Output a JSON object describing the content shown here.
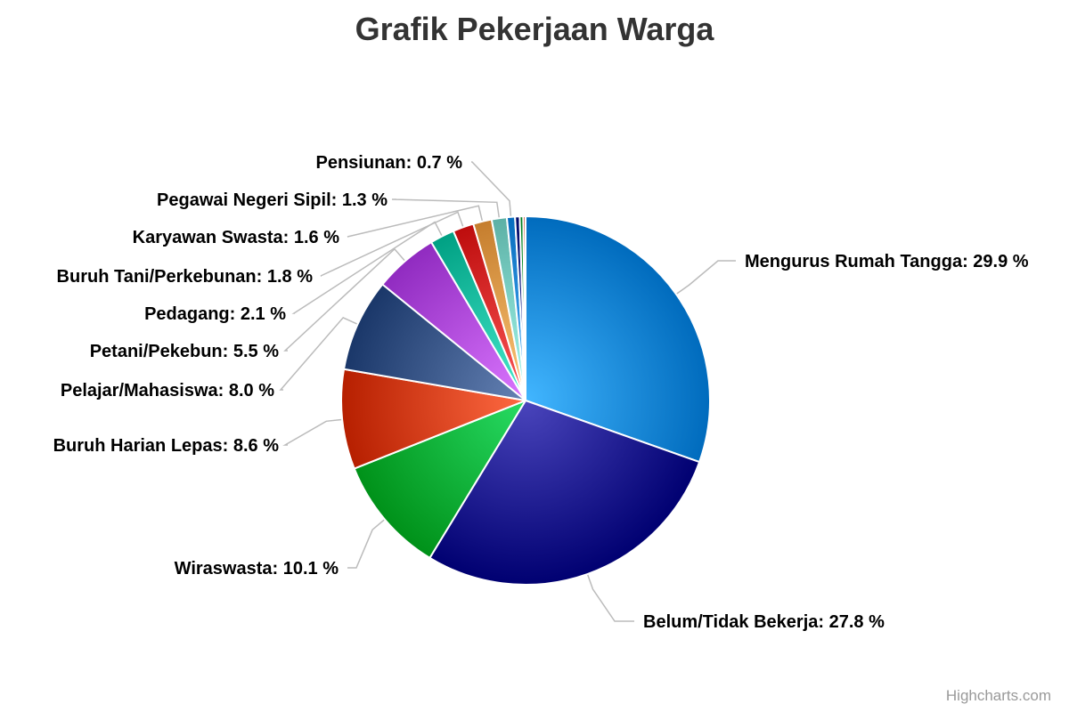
{
  "credits": "Highcharts.com",
  "chart_data": {
    "type": "pie",
    "title": "Grafik Pekerjaan Warga",
    "unit": "%",
    "slices": [
      {
        "name": "Mengurus Rumah Tangga",
        "value": 29.9,
        "color": "#1a8ee0",
        "label": "Mengurus Rumah Tangga: 29.9 %"
      },
      {
        "name": "Belum/Tidak Bekerja",
        "value": 27.8,
        "color": "#221d94",
        "label": "Belum/Tidak Bekerja: 27.8 %"
      },
      {
        "name": "Wiraswasta",
        "value": 10.1,
        "color": "#00b43c",
        "label": "Wiraswasta: 10.1 %"
      },
      {
        "name": "Buruh Harian Lepas",
        "value": 8.6,
        "color": "#d9421a",
        "label": "Buruh Harian Lepas: 8.6 %"
      },
      {
        "name": "Pelajar/Mahasiswa",
        "value": 8.0,
        "color": "#3d5a8c",
        "label": "Pelajar/Mahasiswa: 8.0 %"
      },
      {
        "name": "Petani/Pekebun",
        "value": 5.5,
        "color": "#b34ee3",
        "label": "Petani/Pekebun: 5.5 %"
      },
      {
        "name": "Pedagang",
        "value": 2.1,
        "color": "#1fc3a6",
        "label": "Pedagang: 2.1 %"
      },
      {
        "name": "Buruh Tani/Perkebunan",
        "value": 1.8,
        "color": "#e03030",
        "label": "Buruh Tani/Perkebunan: 1.8 %"
      },
      {
        "name": "Karyawan Swasta",
        "value": 1.6,
        "color": "#e8a050",
        "label": "Karyawan Swasta: 1.6 %"
      },
      {
        "name": "Pegawai Negeri Sipil",
        "value": 1.3,
        "color": "#7fd3c8",
        "label": "Pegawai Negeri Sipil: 1.3 %"
      },
      {
        "name": "Pensiunan",
        "value": 0.7,
        "color": "#2a8fe0",
        "label": "Pensiunan: 0.7 %"
      },
      {
        "name": "",
        "value": 0.4,
        "color": "#1b2a8a",
        "label": ""
      },
      {
        "name": "",
        "value": 0.3,
        "color": "#20a040",
        "label": ""
      },
      {
        "name": "",
        "value": 0.2,
        "color": "#d9421a",
        "label": ""
      }
    ]
  }
}
